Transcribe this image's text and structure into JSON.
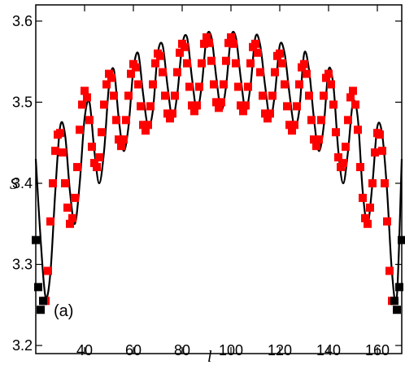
{
  "chart_data": {
    "type": "scatter",
    "xlabel": "l",
    "ylabel": "S",
    "panel_label": "(a)",
    "xlim": [
      20,
      170
    ],
    "ylim": [
      3.19,
      3.62
    ],
    "xticks": [
      40,
      60,
      80,
      100,
      120,
      140,
      160
    ],
    "yticks": [
      3.2,
      3.3,
      3.4,
      3.5,
      3.6
    ],
    "xtick_labels": [
      "40",
      "60",
      "80",
      "100",
      "120",
      "140",
      "160"
    ],
    "ytick_labels": [
      "3.2",
      "3.3",
      "3.4",
      "3.5",
      "3.6"
    ],
    "grid": false,
    "series": [
      {
        "style": "line",
        "color": "#000000",
        "description_points": {
          "x": [
            20,
            22,
            24,
            26,
            28,
            30,
            32,
            34,
            36,
            38,
            40,
            42,
            44,
            46,
            48,
            50,
            52,
            54,
            56,
            58,
            60,
            62,
            64,
            66,
            68,
            70,
            72,
            74,
            76,
            78,
            80,
            82,
            84,
            86,
            88,
            90,
            92,
            94,
            96,
            98,
            100,
            102,
            104,
            106,
            108,
            110,
            112,
            114,
            116,
            118,
            120,
            122,
            124,
            126,
            128,
            130,
            132,
            134,
            136,
            138,
            140,
            142,
            144,
            146,
            148,
            150,
            152,
            154,
            156,
            158,
            160,
            162,
            164,
            166,
            168,
            170
          ],
          "y": [
            3.43,
            3.33,
            3.26,
            3.29,
            3.39,
            3.47,
            3.46,
            3.39,
            3.35,
            3.4,
            3.48,
            3.5,
            3.44,
            3.4,
            3.44,
            3.52,
            3.54,
            3.48,
            3.44,
            3.47,
            3.54,
            3.56,
            3.51,
            3.47,
            3.49,
            3.56,
            3.57,
            3.52,
            3.48,
            3.51,
            3.57,
            3.58,
            3.53,
            3.49,
            3.52,
            3.58,
            3.58,
            3.53,
            3.49,
            3.52,
            3.58,
            3.58,
            3.53,
            3.49,
            3.52,
            3.58,
            3.57,
            3.52,
            3.48,
            3.51,
            3.57,
            3.56,
            3.51,
            3.47,
            3.49,
            3.56,
            3.54,
            3.48,
            3.44,
            3.47,
            3.54,
            3.52,
            3.44,
            3.4,
            3.44,
            3.5,
            3.48,
            3.39,
            3.35,
            3.4,
            3.47,
            3.46,
            3.39,
            3.29,
            3.26,
            3.43
          ]
        }
      },
      {
        "style": "markers",
        "color": "#ff0000",
        "x": [
          24,
          25,
          26,
          27,
          28,
          29,
          30,
          31,
          32,
          33,
          34,
          35,
          36,
          37,
          38,
          39,
          40,
          41,
          42,
          43,
          44,
          45,
          46,
          47,
          48,
          49,
          50,
          51,
          52,
          53,
          54,
          55,
          56,
          57,
          58,
          59,
          60,
          61,
          62,
          63,
          64,
          65,
          66,
          67,
          68,
          69,
          70,
          71,
          72,
          73,
          74,
          75,
          76,
          77,
          78,
          79,
          80,
          81,
          82,
          83,
          84,
          85,
          86,
          87,
          88,
          89,
          90,
          91,
          92,
          93,
          94,
          95,
          96,
          97,
          98,
          99,
          100,
          101,
          102,
          103,
          104,
          105,
          106,
          107,
          108,
          109,
          110,
          111,
          112,
          113,
          114,
          115,
          116,
          117,
          118,
          119,
          120,
          121,
          122,
          123,
          124,
          125,
          126,
          127,
          128,
          129,
          130,
          131,
          132,
          133,
          134,
          135,
          136,
          137,
          138,
          139,
          140,
          141,
          142,
          143,
          144,
          145,
          146,
          147,
          148,
          149,
          150,
          151,
          152,
          153,
          154,
          155,
          156,
          157,
          158,
          159,
          160,
          161,
          162,
          163,
          164,
          165,
          166
        ],
        "y": [
          3.255,
          3.292,
          3.353,
          3.4,
          3.44,
          3.46,
          3.462,
          3.438,
          3.4,
          3.37,
          3.35,
          3.357,
          3.382,
          3.42,
          3.466,
          3.497,
          3.514,
          3.506,
          3.478,
          3.445,
          3.425,
          3.42,
          3.432,
          3.463,
          3.497,
          3.522,
          3.535,
          3.53,
          3.508,
          3.478,
          3.454,
          3.446,
          3.454,
          3.478,
          3.508,
          3.535,
          3.547,
          3.543,
          3.522,
          3.495,
          3.472,
          3.465,
          3.472,
          3.495,
          3.522,
          3.548,
          3.56,
          3.557,
          3.537,
          3.508,
          3.486,
          3.48,
          3.486,
          3.508,
          3.537,
          3.561,
          3.572,
          3.568,
          3.548,
          3.519,
          3.496,
          3.489,
          3.496,
          3.519,
          3.548,
          3.572,
          3.58,
          3.573,
          3.551,
          3.522,
          3.5,
          3.493,
          3.5,
          3.522,
          3.551,
          3.573,
          3.58,
          3.572,
          3.548,
          3.519,
          3.496,
          3.489,
          3.496,
          3.519,
          3.548,
          3.568,
          3.572,
          3.561,
          3.537,
          3.508,
          3.486,
          3.48,
          3.486,
          3.508,
          3.537,
          3.557,
          3.56,
          3.548,
          3.522,
          3.495,
          3.472,
          3.465,
          3.472,
          3.495,
          3.522,
          3.543,
          3.547,
          3.535,
          3.508,
          3.478,
          3.454,
          3.446,
          3.454,
          3.478,
          3.508,
          3.53,
          3.535,
          3.522,
          3.497,
          3.463,
          3.432,
          3.42,
          3.425,
          3.445,
          3.478,
          3.506,
          3.514,
          3.497,
          3.466,
          3.42,
          3.382,
          3.357,
          3.35,
          3.37,
          3.4,
          3.438,
          3.462,
          3.46,
          3.44,
          3.4,
          3.353,
          3.292,
          3.255
        ]
      },
      {
        "style": "markers",
        "color": "#000000",
        "x": [
          20,
          21,
          22,
          23,
          167,
          168,
          169,
          170
        ],
        "y": [
          3.33,
          3.272,
          3.244,
          3.255,
          3.255,
          3.244,
          3.272,
          3.33
        ]
      }
    ]
  }
}
